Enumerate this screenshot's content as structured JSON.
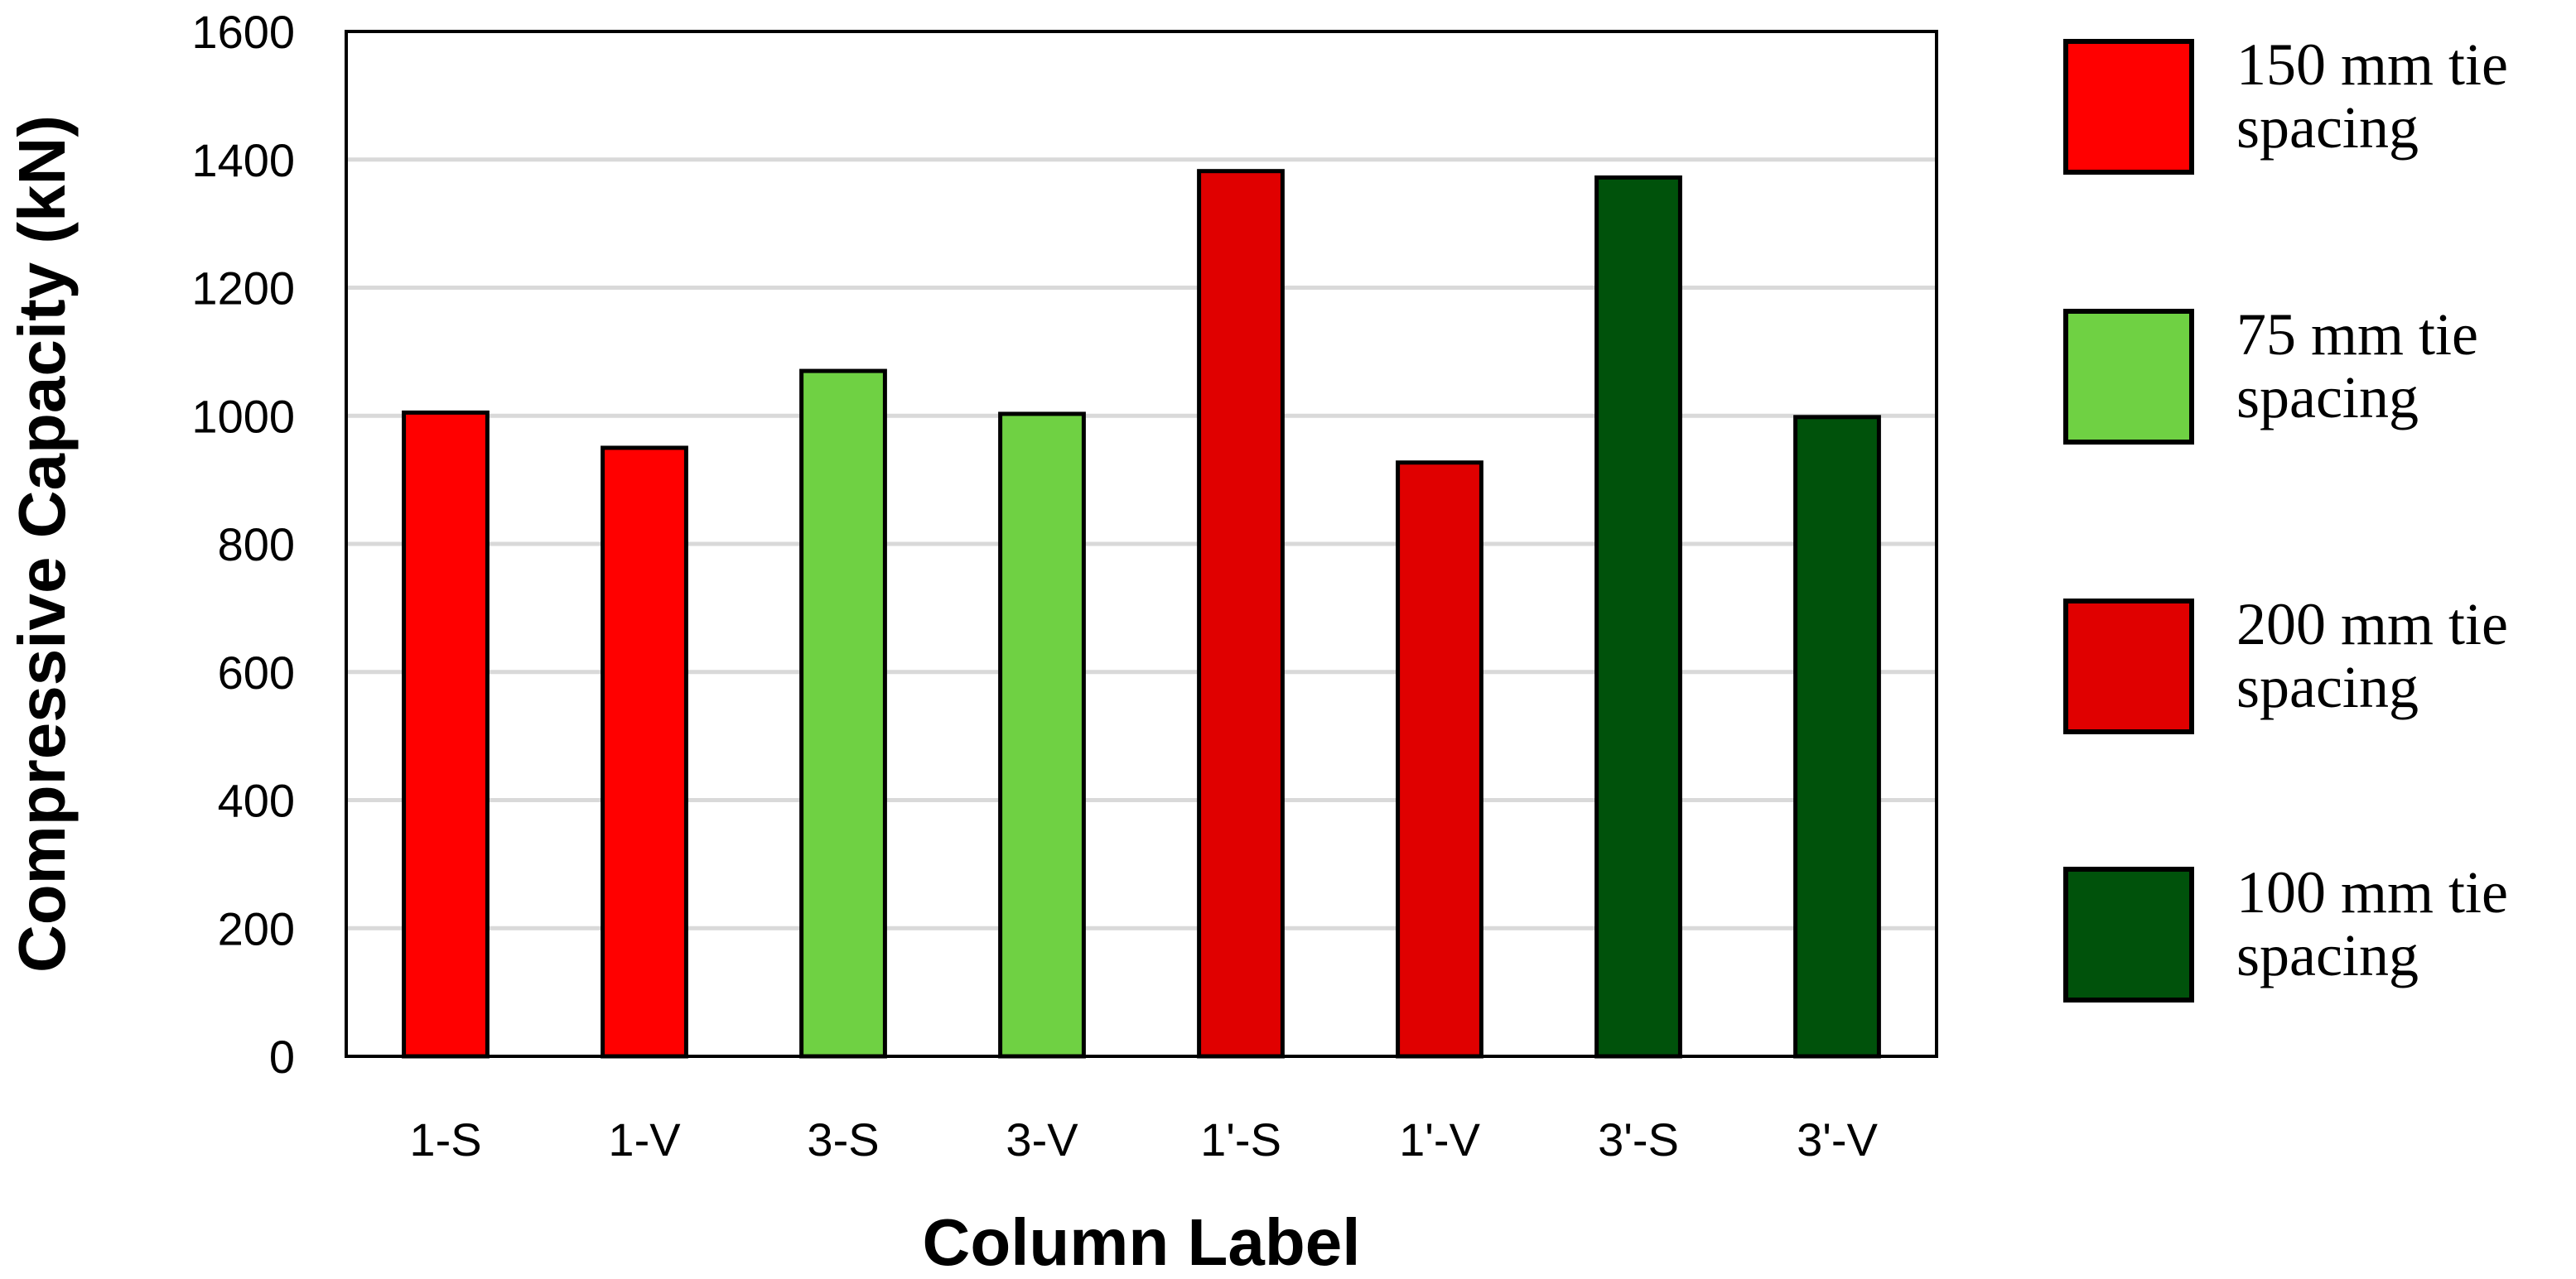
{
  "chart_data": {
    "type": "bar",
    "title": "",
    "xlabel": "Column Label",
    "ylabel": "Compressive Capacity (kN)",
    "ylim": [
      0,
      1600
    ],
    "yticks": [
      0,
      200,
      400,
      600,
      800,
      1000,
      1200,
      1400,
      1600
    ],
    "grid": true,
    "legend_position": "right",
    "categories": [
      "1-S",
      "1-V",
      "3-S",
      "3-V",
      "1'-S",
      "1'-V",
      "3'-S",
      "3'-V"
    ],
    "values": [
      1005,
      950,
      1070,
      1003,
      1382,
      927,
      1372,
      998
    ],
    "bar_groups": [
      "150",
      "150",
      "75",
      "75",
      "200",
      "200",
      "100",
      "100"
    ],
    "legend": [
      {
        "key": "150",
        "line1": "150 mm tie",
        "line2": "spacing",
        "color": "#ff0000"
      },
      {
        "key": "75",
        "line1": "75 mm tie",
        "line2": "spacing",
        "color": "#6fd143"
      },
      {
        "key": "200",
        "line1": "200 mm tie",
        "line2": "spacing",
        "color": "#e00000"
      },
      {
        "key": "100",
        "line1": "100 mm tie",
        "line2": "spacing",
        "color": "#00520b"
      }
    ]
  }
}
